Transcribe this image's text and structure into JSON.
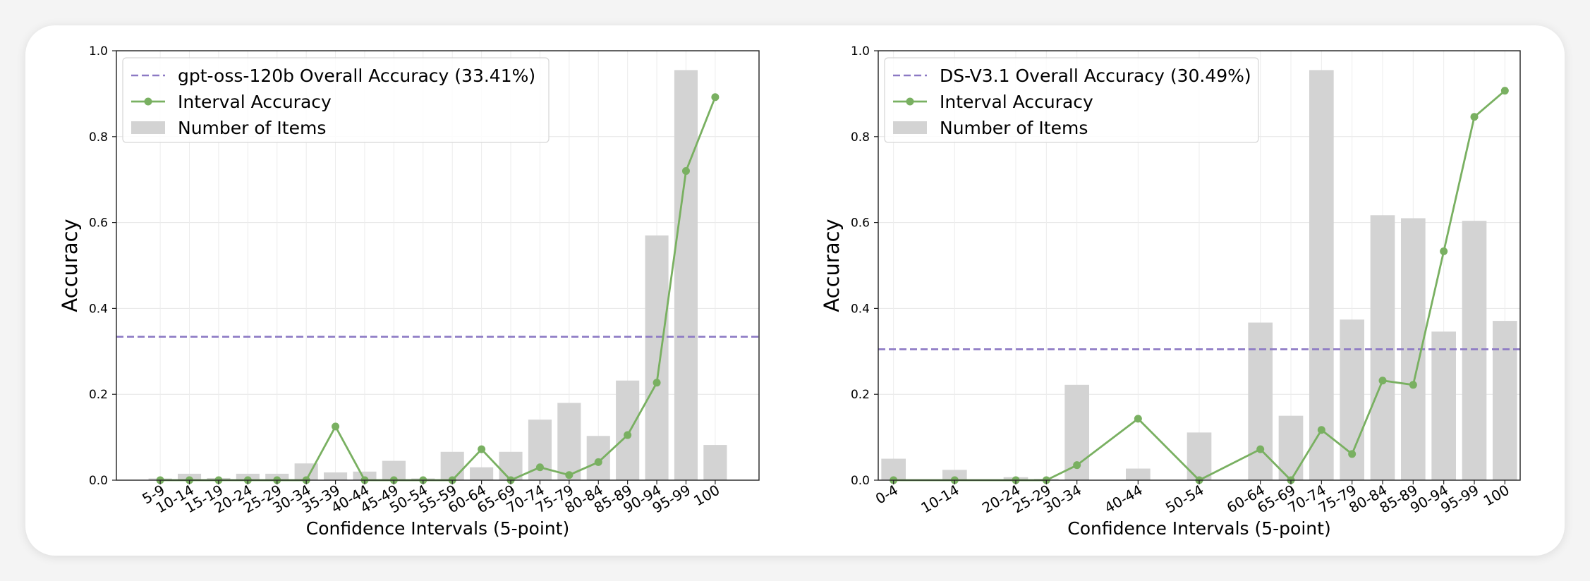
{
  "chart_data": [
    {
      "type": "bar",
      "xlabel": "Confidence Intervals (5-point)",
      "ylabel": "Accuracy",
      "ylim": [
        0,
        1.0
      ],
      "yticks": [
        "0.0",
        "0.2",
        "0.4",
        "0.6",
        "0.8",
        "1.0"
      ],
      "categories": [
        "5-9",
        "10-14",
        "15-19",
        "20-24",
        "25-29",
        "30-34",
        "35-39",
        "40-44",
        "45-49",
        "50-54",
        "55-59",
        "60-64",
        "65-69",
        "70-74",
        "75-79",
        "80-84",
        "85-89",
        "90-94",
        "95-99",
        "100"
      ],
      "overall_accuracy": 0.3341,
      "legend_placement": "upper-left",
      "grid": true,
      "series": [
        {
          "name": "gpt-oss-120b Overall Accuracy (33.41%)",
          "kind": "hline",
          "color": "#8c79c4"
        },
        {
          "name": "Interval Accuracy",
          "kind": "line",
          "color": "#79b061",
          "values": [
            0,
            0,
            0,
            0,
            0,
            0,
            0.125,
            0,
            0,
            0,
            0,
            0.072,
            0,
            0.03,
            0.012,
            0.042,
            0.105,
            0.227,
            0.72,
            0.892
          ]
        },
        {
          "name": "Number of Items",
          "kind": "bar",
          "color": "#d3d3d3",
          "values": [
            0.004,
            0.015,
            0.005,
            0.015,
            0.015,
            0.039,
            0.018,
            0.02,
            0.045,
            0.004,
            0.066,
            0.03,
            0.066,
            0.141,
            0.18,
            0.103,
            0.232,
            0.57,
            0.955,
            0.082
          ]
        }
      ]
    },
    {
      "type": "bar",
      "xlabel": "Confidence Intervals (5-point)",
      "ylabel": "Accuracy",
      "ylim": [
        0,
        1.0
      ],
      "yticks": [
        "0.0",
        "0.2",
        "0.4",
        "0.6",
        "0.8",
        "1.0"
      ],
      "categories": [
        "0-4",
        "10-14",
        "20-24",
        "25-29",
        "30-34",
        "40-44",
        "50-54",
        "60-64",
        "65-69",
        "70-74",
        "75-79",
        "80-84",
        "85-89",
        "90-94",
        "95-99",
        "100"
      ],
      "category_positions": [
        0,
        2,
        4,
        5,
        6,
        8,
        10,
        12,
        13,
        14,
        15,
        16,
        17,
        18,
        19,
        20
      ],
      "overall_accuracy": 0.3049,
      "legend_placement": "upper-left",
      "grid": true,
      "series": [
        {
          "name": "DS-V3.1 Overall Accuracy (30.49%)",
          "kind": "hline",
          "color": "#8c79c4"
        },
        {
          "name": "Interval Accuracy",
          "kind": "line",
          "color": "#79b061",
          "values": [
            0,
            0,
            0,
            0,
            0.035,
            0.143,
            0,
            0.072,
            0,
            0.117,
            0.061,
            0.232,
            0.222,
            0.533,
            0.846,
            0.907
          ]
        },
        {
          "name": "Number of Items",
          "kind": "bar",
          "color": "#d3d3d3",
          "values": [
            0.05,
            0.024,
            0.007,
            0.003,
            0.222,
            0.027,
            0.111,
            0.367,
            0.15,
            0.955,
            0.374,
            0.617,
            0.61,
            0.346,
            0.604,
            0.371
          ]
        }
      ]
    }
  ]
}
